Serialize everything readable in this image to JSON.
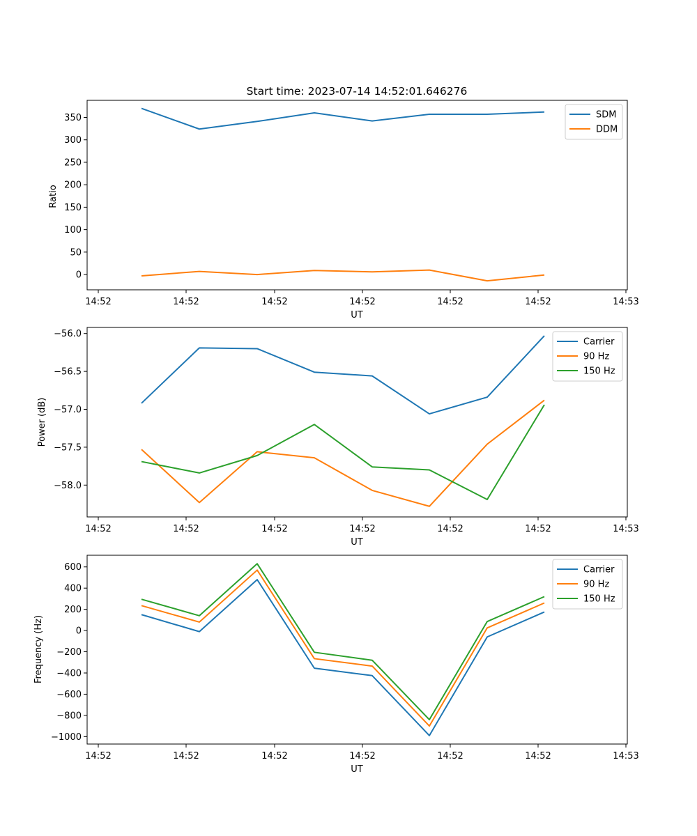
{
  "chart_data": [
    {
      "type": "line",
      "title": "Start time: 2023-07-14 14:52:01.646276",
      "xlabel": "UT",
      "ylabel": "Ratio",
      "x_tick_labels": [
        "14:52",
        "14:52",
        "14:52",
        "14:52",
        "14:52",
        "14:52",
        "14:53"
      ],
      "y_ticks": [
        0,
        50,
        100,
        150,
        200,
        250,
        300,
        350
      ],
      "ylim": [
        -34,
        388
      ],
      "grid": false,
      "legend_position": "top-right",
      "series": [
        {
          "name": "SDM",
          "color": "#1f77b4",
          "values": [
            370,
            324,
            341,
            360,
            342,
            357,
            357,
            362
          ]
        },
        {
          "name": "DDM",
          "color": "#ff7f0e",
          "values": [
            -3,
            7,
            0,
            9,
            6,
            10,
            -14,
            -1
          ]
        }
      ]
    },
    {
      "type": "line",
      "title": "",
      "xlabel": "UT",
      "ylabel": "Power (dB)",
      "x_tick_labels": [
        "14:52",
        "14:52",
        "14:52",
        "14:52",
        "14:52",
        "14:52",
        "14:53"
      ],
      "y_ticks": [
        -58.0,
        -57.5,
        -57.0,
        -56.5,
        -56.0
      ],
      "y_tick_labels": [
        "−58.0",
        "−57.5",
        "−57.0",
        "−56.5",
        "−56.0"
      ],
      "ylim": [
        -58.42,
        -55.92
      ],
      "grid": false,
      "legend_position": "top-right",
      "series": [
        {
          "name": "Carrier",
          "color": "#1f77b4",
          "values": [
            -56.92,
            -56.19,
            -56.2,
            -56.51,
            -56.56,
            -57.06,
            -56.84,
            -56.03
          ]
        },
        {
          "name": "90 Hz",
          "color": "#ff7f0e",
          "values": [
            -57.53,
            -58.23,
            -57.56,
            -57.64,
            -58.07,
            -58.28,
            -57.46,
            -56.88
          ]
        },
        {
          "name": "150 Hz",
          "color": "#2ca02c",
          "values": [
            -57.69,
            -57.84,
            -57.61,
            -57.2,
            -57.76,
            -57.8,
            -58.19,
            -56.94
          ]
        }
      ]
    },
    {
      "type": "line",
      "title": "",
      "xlabel": "UT",
      "ylabel": "Frequency (Hz)",
      "x_tick_labels": [
        "14:52",
        "14:52",
        "14:52",
        "14:52",
        "14:52",
        "14:52",
        "14:53"
      ],
      "y_ticks": [
        -1000,
        -800,
        -600,
        -400,
        -200,
        0,
        200,
        400,
        600
      ],
      "y_tick_labels": [
        "−1000",
        "−800",
        "−600",
        "−400",
        "−200",
        "0",
        "200",
        "400",
        "600"
      ],
      "ylim": [
        -1070,
        710
      ],
      "grid": false,
      "legend_position": "top-right",
      "series": [
        {
          "name": "Carrier",
          "color": "#1f77b4",
          "values": [
            150,
            -10,
            480,
            -355,
            -425,
            -990,
            -60,
            175
          ]
        },
        {
          "name": "90 Hz",
          "color": "#ff7f0e",
          "values": [
            235,
            80,
            570,
            -265,
            -335,
            -900,
            25,
            260
          ]
        },
        {
          "name": "150 Hz",
          "color": "#2ca02c",
          "values": [
            295,
            140,
            630,
            -205,
            -280,
            -840,
            85,
            320
          ]
        }
      ]
    }
  ]
}
